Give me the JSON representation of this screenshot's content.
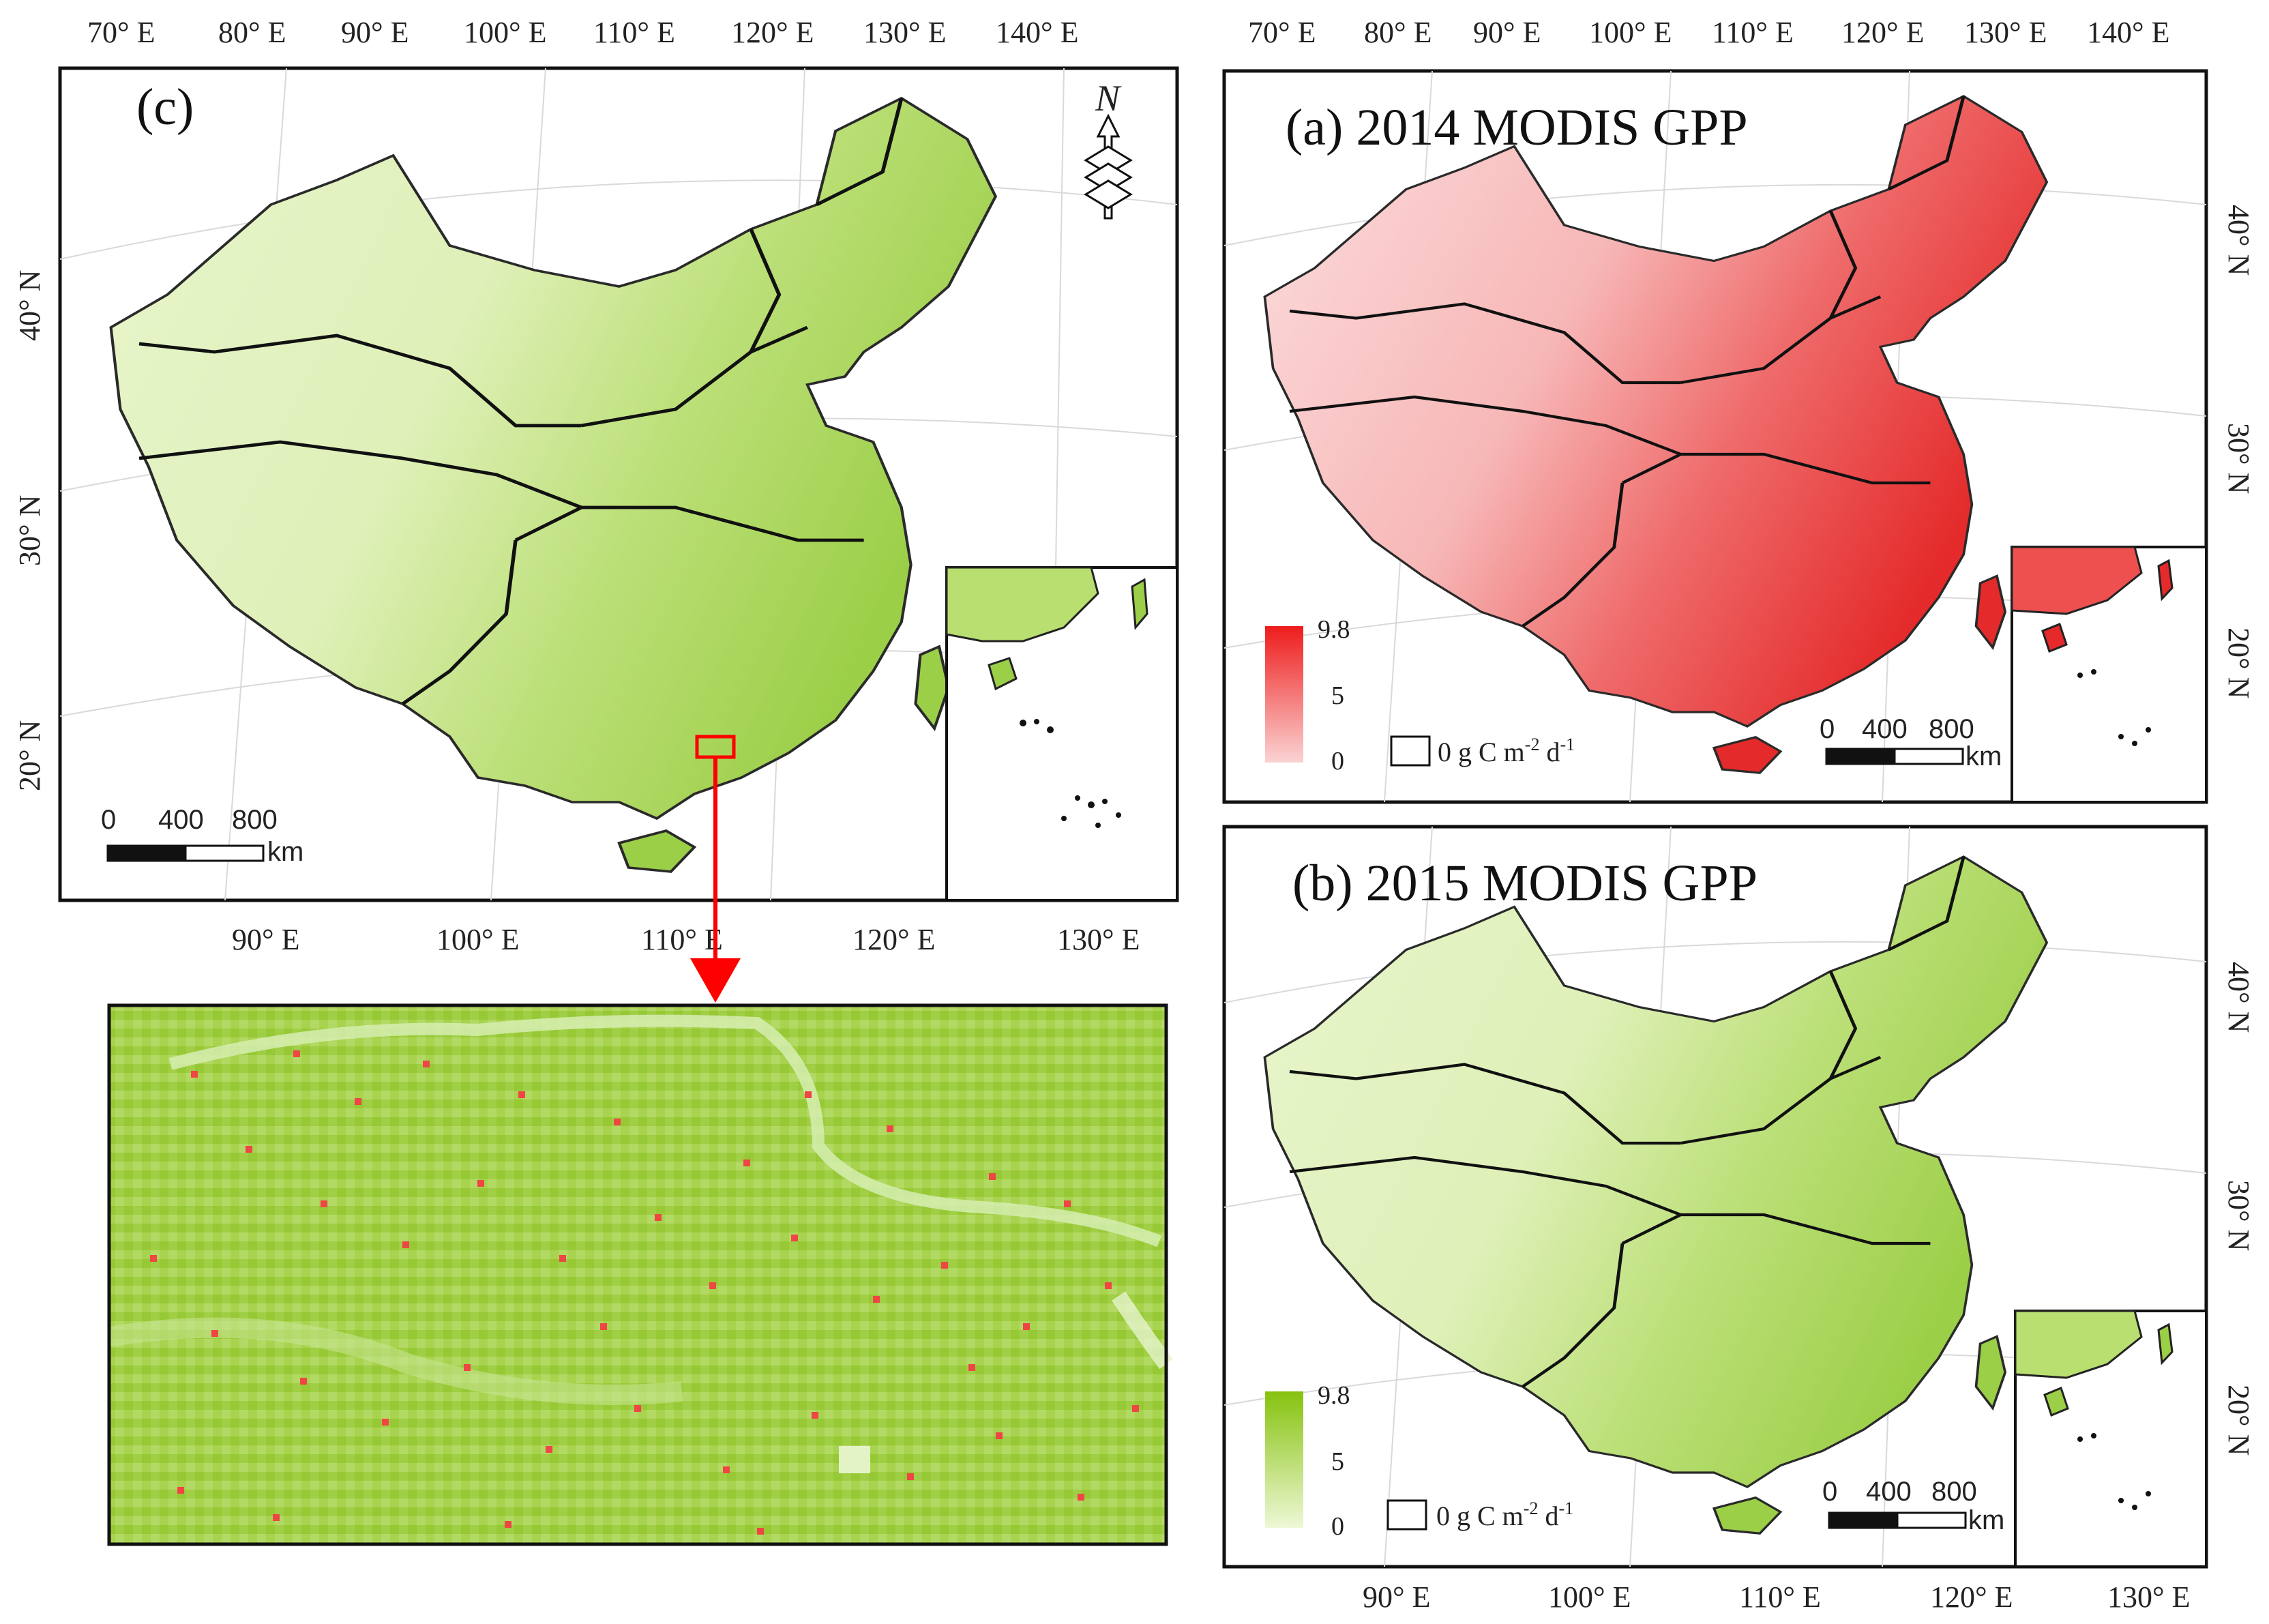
{
  "panels": {
    "c": {
      "label": "(c)",
      "top_ticks": [
        "70° E",
        "80° E",
        "90° E",
        "100° E",
        "110° E",
        "120° E",
        "130° E",
        "140° E"
      ],
      "bottom_ticks": [
        "90° E",
        "100° E",
        "110° E",
        "120° E",
        "130° E"
      ],
      "left_ticks": [
        "40° N",
        "30° N",
        "20° N"
      ],
      "scale": {
        "zero": "0",
        "mid": "400",
        "max": "800",
        "unit": "km"
      },
      "north_label": "N"
    },
    "a": {
      "title": "(a) 2014 MODIS GPP",
      "top_ticks": [
        "70° E",
        "80° E",
        "90° E",
        "100° E",
        "110° E",
        "120° E",
        "130° E",
        "140° E"
      ],
      "right_ticks": [
        "40° N",
        "30° N",
        "20° N"
      ],
      "legend": {
        "max": "9.8",
        "mid": "5",
        "min": "0",
        "color_high": "#ee1c1c",
        "color_low": "#fbd3d3"
      },
      "unit_label": "0 g C m-2 d-1",
      "unit_parts": {
        "base": "0 g C m",
        "exp1": "-2",
        "mid": " d",
        "exp2": "-1"
      },
      "scale": {
        "zero": "0",
        "mid": "400",
        "max": "800",
        "unit": "km"
      }
    },
    "b": {
      "title": "(b) 2015 MODIS GPP",
      "bottom_ticks": [
        "90° E",
        "100° E",
        "110° E",
        "120° E",
        "130° E"
      ],
      "right_ticks": [
        "40° N",
        "30° N",
        "20° N"
      ],
      "legend": {
        "max": "9.8",
        "mid": "5",
        "min": "0",
        "color_high": "#86c20e",
        "color_low": "#eef8d6"
      },
      "unit_label": "0 g C m-2 d-1",
      "unit_parts": {
        "base": "0 g C m",
        "exp1": "-2",
        "mid": " d",
        "exp2": "-1"
      },
      "scale": {
        "zero": "0",
        "mid": "400",
        "max": "800",
        "unit": "km"
      }
    }
  },
  "colors": {
    "green_light": "#e4f3c4",
    "green_mid": "#bfe37a",
    "green_dark": "#8cc63f",
    "red_light": "#fbd0d0",
    "red_mid": "#f28a8a",
    "red_dark": "#e62020",
    "highlight": "#ff0000"
  }
}
